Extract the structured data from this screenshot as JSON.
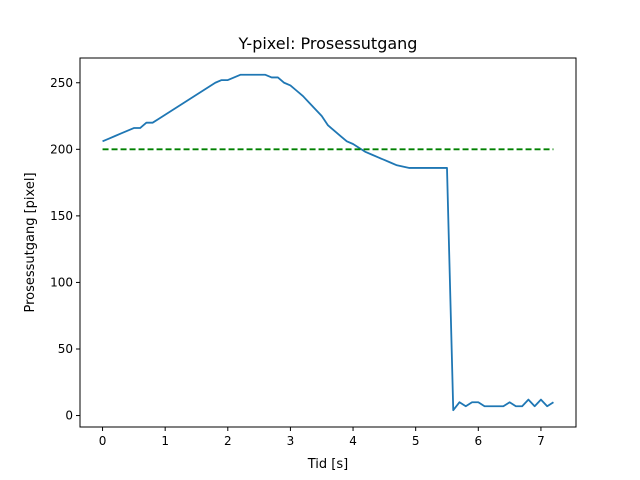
{
  "chart_data": {
    "type": "line",
    "title": "Y-pixel: Prosessutgang",
    "xlabel": "Tid [s]",
    "ylabel": "Prosessutgang [pixel]",
    "xlim": [
      -0.36,
      7.56
    ],
    "ylim": [
      -8.6,
      268.6
    ],
    "xticks": [
      0,
      1,
      2,
      3,
      4,
      5,
      6,
      7
    ],
    "yticks": [
      0,
      50,
      100,
      150,
      200,
      250
    ],
    "grid": false,
    "series": [
      {
        "color": "#1f77b4",
        "style": "solid",
        "x": [
          0,
          0.1,
          0.2,
          0.3,
          0.4,
          0.5,
          0.6,
          0.7,
          0.8,
          0.9,
          1.0,
          1.1,
          1.2,
          1.3,
          1.4,
          1.5,
          1.6,
          1.7,
          1.8,
          1.9,
          2.0,
          2.1,
          2.2,
          2.3,
          2.4,
          2.5,
          2.6,
          2.7,
          2.8,
          2.9,
          3.0,
          3.1,
          3.2,
          3.3,
          3.4,
          3.5,
          3.6,
          3.7,
          3.8,
          3.9,
          4.0,
          4.1,
          4.2,
          4.3,
          4.4,
          4.5,
          4.6,
          4.7,
          4.8,
          4.9,
          5.0,
          5.1,
          5.2,
          5.3,
          5.4,
          5.5,
          5.6,
          5.7,
          5.8,
          5.9,
          6.0,
          6.1,
          6.2,
          6.3,
          6.4,
          6.5,
          6.6,
          6.7,
          6.8,
          6.9,
          7.0,
          7.1,
          7.2
        ],
        "y": [
          206,
          208,
          210,
          212,
          214,
          216,
          216,
          220,
          220,
          223,
          226,
          229,
          232,
          235,
          238,
          241,
          244,
          247,
          250,
          252,
          252,
          254,
          256,
          256,
          256,
          256,
          256,
          254,
          254,
          250,
          248,
          244,
          240,
          235,
          230,
          225,
          218,
          214,
          210,
          206,
          204,
          201,
          198,
          196,
          194,
          192,
          190,
          188,
          187,
          186,
          186,
          186,
          186,
          186,
          186,
          186,
          4,
          10,
          7,
          10,
          10,
          7,
          7,
          7,
          7,
          10,
          7,
          7,
          12,
          7,
          12,
          7,
          10
        ]
      },
      {
        "color": "#008000",
        "style": "dashed",
        "x": [
          0,
          7.2
        ],
        "y": [
          200,
          200
        ]
      }
    ]
  }
}
